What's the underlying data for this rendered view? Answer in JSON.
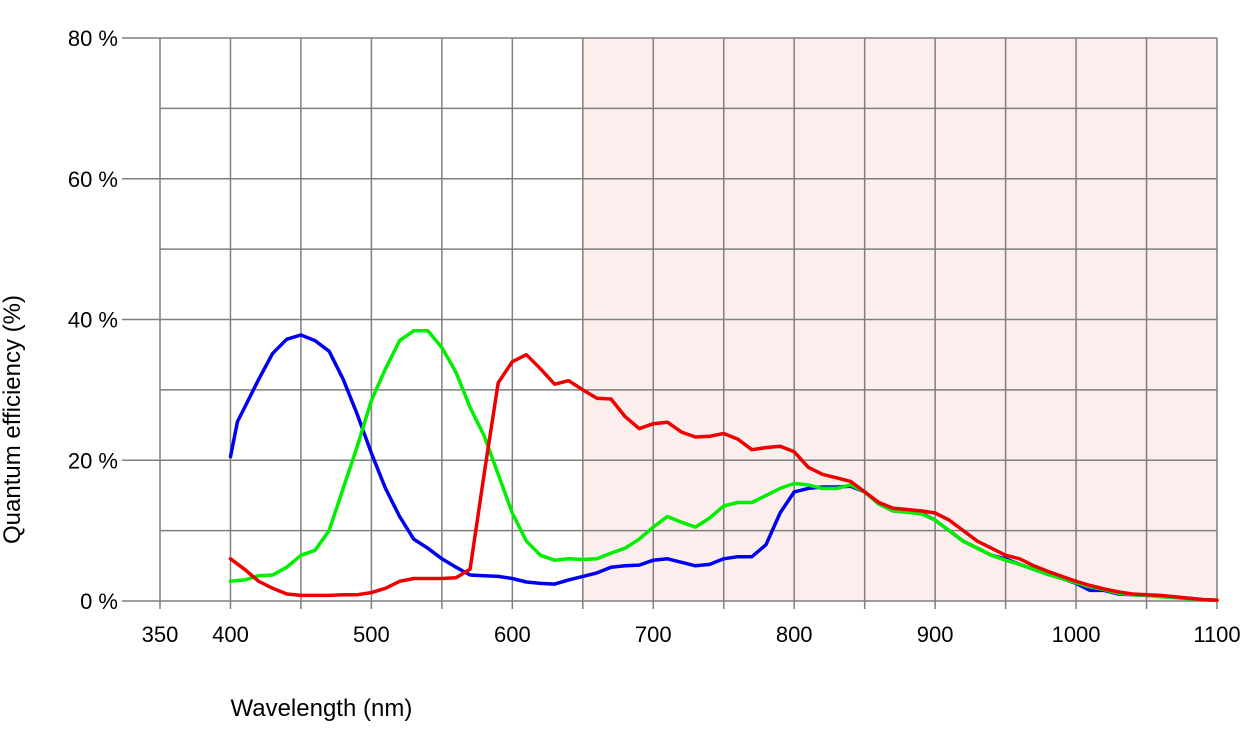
{
  "chart_data": {
    "type": "line",
    "xlabel": "Wavelength (nm)",
    "ylabel": "Quantum efficiency (%)",
    "xlim": [
      350,
      1100
    ],
    "ylim": [
      0,
      80
    ],
    "x_tick_values": [
      350,
      400,
      500,
      600,
      700,
      800,
      900,
      1000,
      1100
    ],
    "x_tick_labels": [
      "350",
      "400",
      "500",
      "600",
      "700",
      "800",
      "900",
      "1000",
      "1100"
    ],
    "y_tick_values": [
      0,
      20,
      40,
      60,
      80
    ],
    "y_tick_labels": [
      "0 %",
      "20 %",
      "40 %",
      "60 %",
      "80 %"
    ],
    "x_grid_step": 50,
    "y_grid_step": 10,
    "grid": true,
    "shaded_region": {
      "x_from": 650,
      "x_to": 1100,
      "color": "#fdeeee"
    },
    "grid_color": "#7f7f7f",
    "series": [
      {
        "color": "#0000ee",
        "x": [
          400,
          405,
          410,
          420,
          430,
          440,
          450,
          460,
          470,
          480,
          490,
          500,
          510,
          520,
          530,
          540,
          550,
          560,
          570,
          580,
          590,
          600,
          610,
          620,
          630,
          640,
          650,
          660,
          670,
          680,
          690,
          700,
          710,
          720,
          730,
          740,
          750,
          760,
          770,
          780,
          790,
          800,
          810,
          820,
          830,
          840,
          850,
          860,
          870,
          880,
          890,
          900,
          910,
          920,
          930,
          940,
          950,
          960,
          970,
          980,
          990,
          1000,
          1010,
          1020,
          1030,
          1040,
          1050,
          1060,
          1070,
          1080,
          1090,
          1100
        ],
        "y": [
          20.5,
          25.5,
          27.5,
          31.5,
          35.2,
          37.2,
          37.8,
          37,
          35.5,
          31.5,
          26.5,
          21,
          16,
          12,
          8.8,
          7.5,
          6,
          4.8,
          3.7,
          3.6,
          3.5,
          3.2,
          2.7,
          2.5,
          2.4,
          3,
          3.5,
          4,
          4.8,
          5,
          5.1,
          5.8,
          6,
          5.5,
          5,
          5.2,
          6,
          6.3,
          6.3,
          8,
          12.5,
          15.5,
          16,
          16.2,
          16.2,
          16.3,
          15.5,
          13.8,
          12.8,
          12.7,
          12.5,
          11.5,
          10,
          8.5,
          7.5,
          6.5,
          6,
          5.2,
          4.5,
          3.8,
          3.2,
          2.5,
          1.5,
          1.5,
          1,
          0.9,
          0.8,
          0.7,
          0.5,
          0.4,
          0.2,
          0.1
        ]
      },
      {
        "color": "#00ee00",
        "x": [
          400,
          410,
          420,
          430,
          440,
          450,
          460,
          470,
          480,
          490,
          500,
          510,
          520,
          530,
          540,
          550,
          560,
          570,
          580,
          590,
          600,
          610,
          620,
          630,
          640,
          650,
          660,
          670,
          680,
          690,
          700,
          710,
          720,
          730,
          740,
          750,
          760,
          770,
          780,
          790,
          800,
          810,
          820,
          830,
          840,
          850,
          860,
          870,
          880,
          890,
          900,
          910,
          920,
          930,
          940,
          950,
          960,
          970,
          980,
          990,
          1000,
          1010,
          1020,
          1030,
          1040,
          1050,
          1060,
          1070,
          1080,
          1090,
          1100
        ],
        "y": [
          2.8,
          3,
          3.6,
          3.7,
          4.8,
          6.5,
          7.2,
          10,
          16,
          22,
          28.5,
          33,
          37,
          38.4,
          38.4,
          36,
          32.5,
          27.5,
          23.5,
          18,
          12.5,
          8.5,
          6.5,
          5.8,
          6,
          5.9,
          6,
          6.8,
          7.5,
          8.8,
          10.5,
          12,
          11.2,
          10.5,
          11.8,
          13.5,
          14,
          14,
          15,
          16,
          16.7,
          16.5,
          16,
          16,
          16.5,
          15.5,
          13.8,
          12.8,
          12.6,
          12.4,
          11.5,
          10,
          8.5,
          7.5,
          6.5,
          5.8,
          5.2,
          4.5,
          3.8,
          3.2,
          2.6,
          2,
          1.6,
          1.1,
          0.9,
          0.8,
          0.6,
          0.5,
          0.3,
          0.2,
          0.1
        ]
      },
      {
        "color": "#ee0000",
        "x": [
          400,
          410,
          420,
          430,
          440,
          450,
          460,
          470,
          480,
          490,
          500,
          510,
          520,
          530,
          540,
          550,
          560,
          570,
          580,
          590,
          600,
          610,
          620,
          630,
          640,
          650,
          660,
          670,
          680,
          690,
          700,
          710,
          720,
          730,
          740,
          750,
          760,
          770,
          780,
          790,
          800,
          810,
          820,
          830,
          840,
          850,
          860,
          870,
          880,
          890,
          900,
          910,
          920,
          930,
          940,
          950,
          960,
          970,
          980,
          990,
          1000,
          1010,
          1020,
          1030,
          1040,
          1050,
          1060,
          1070,
          1080,
          1090,
          1100
        ],
        "y": [
          6,
          4.5,
          2.8,
          1.8,
          1,
          0.8,
          0.8,
          0.8,
          0.9,
          0.9,
          1.2,
          1.8,
          2.8,
          3.2,
          3.2,
          3.2,
          3.3,
          4.5,
          18,
          31,
          34,
          35,
          33,
          30.8,
          31.3,
          30,
          28.8,
          28.7,
          26.2,
          24.5,
          25.2,
          25.4,
          24,
          23.3,
          23.4,
          23.8,
          23,
          21.5,
          21.8,
          22,
          21.2,
          19,
          18,
          17.5,
          17,
          15.5,
          14,
          13.2,
          13,
          12.8,
          12.5,
          11.5,
          10,
          8.5,
          7.5,
          6.5,
          6,
          5,
          4.2,
          3.5,
          2.8,
          2.2,
          1.7,
          1.3,
          1,
          0.9,
          0.8,
          0.6,
          0.4,
          0.2,
          0.1
        ]
      }
    ]
  }
}
